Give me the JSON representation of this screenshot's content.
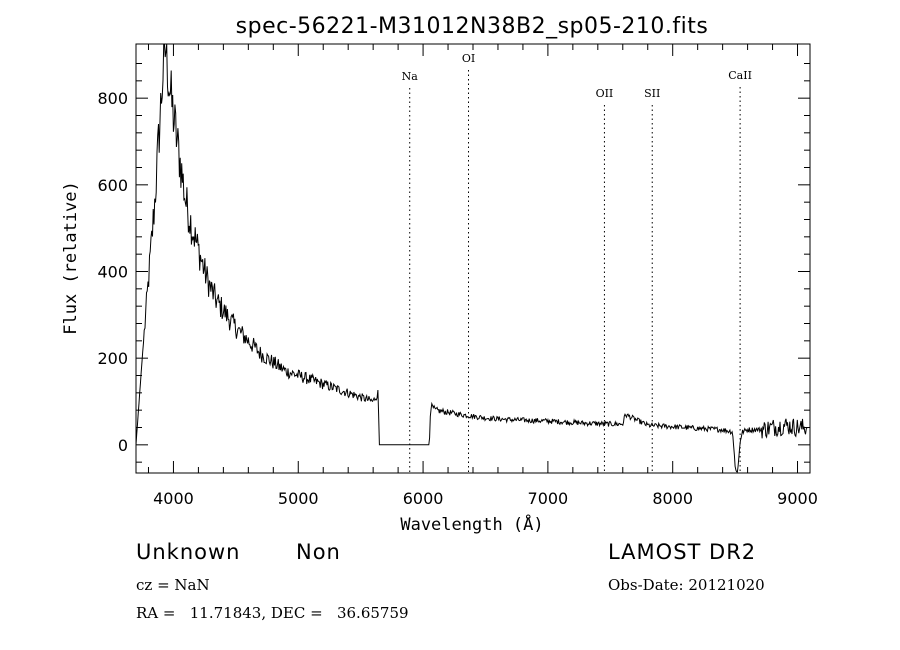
{
  "chart_data": {
    "type": "line",
    "title": "spec-56221-M31012N38B2_sp05-210.fits",
    "xlabel": "Wavelength (Å)",
    "ylabel": "Flux (relative)",
    "xlim": [
      3700,
      9100
    ],
    "ylim": [
      -65,
      925
    ],
    "xticks": [
      4000,
      5000,
      6000,
      7000,
      8000,
      9000
    ],
    "yticks": [
      0,
      200,
      400,
      600,
      800
    ],
    "grid": false,
    "lines": [
      {
        "label": "Na",
        "x": 5893
      },
      {
        "label": "OI",
        "x": 6364
      },
      {
        "label": "OII",
        "x": 7453
      },
      {
        "label": "SII",
        "x": 7836
      },
      {
        "label": "CaII",
        "x": 8540
      }
    ],
    "series": [
      {
        "x": [
          3700,
          3750,
          3850,
          3920,
          3940,
          3960,
          3980,
          4000,
          4030,
          4060,
          4100,
          4150,
          4200,
          4250,
          4300,
          4350,
          4400,
          4500,
          4600,
          4700,
          4800,
          4900,
          5000,
          5100,
          5200,
          5300,
          5400,
          5500,
          5600,
          5640,
          5650,
          5660,
          6050,
          6060,
          6100,
          6200,
          6300,
          6500,
          6700,
          7000,
          7300,
          7500,
          7600,
          7620,
          7800,
          8000,
          8200,
          8400,
          8480,
          8500,
          8520,
          8540,
          8560,
          8600,
          8700,
          8800,
          8900,
          9000,
          9100
        ],
        "y": [
          0,
          200,
          560,
          880,
          920,
          850,
          800,
          760,
          700,
          640,
          560,
          500,
          450,
          400,
          360,
          330,
          310,
          270,
          240,
          210,
          190,
          170,
          160,
          150,
          140,
          130,
          120,
          110,
          100,
          120,
          0,
          0,
          0,
          90,
          80,
          75,
          70,
          62,
          58,
          55,
          50,
          48,
          48,
          70,
          45,
          42,
          38,
          35,
          30,
          -50,
          -65,
          10,
          30,
          35,
          35,
          40,
          45,
          40,
          40
        ]
      }
    ]
  },
  "footer": {
    "object_class": "Unknown",
    "subclass": "Non",
    "cz": "cz = NaN",
    "coords": "RA =   11.71843, DEC =   36.65759",
    "survey": "LAMOST DR2",
    "obs_date": "Obs-Date: 20121020"
  },
  "style": {
    "ink": "#000000",
    "background": "#ffffff"
  }
}
